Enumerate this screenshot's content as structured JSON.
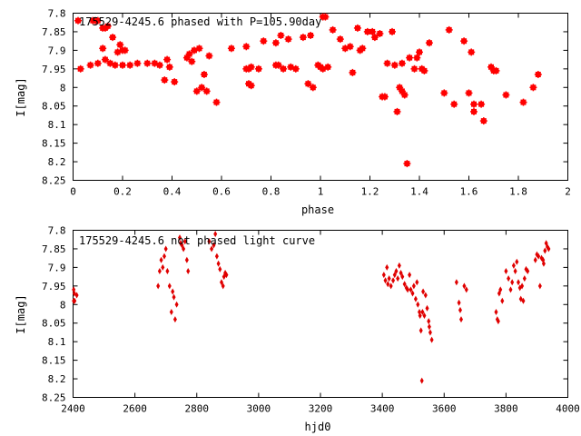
{
  "chart_data": [
    {
      "type": "scatter",
      "title": "175529-4245.6 phased with P=105.90day",
      "xlabel": "phase",
      "ylabel": "I[mag]",
      "xlim": [
        0,
        2
      ],
      "ylim": [
        8.25,
        7.8
      ],
      "y_inverted": true,
      "xticks": [
        "0",
        "0.2",
        "0.4",
        "0.6",
        "0.8",
        "1",
        "1.2",
        "1.4",
        "1.6",
        "1.8",
        "2"
      ],
      "yticks": [
        "7.8",
        "7.85",
        "7.9",
        "7.95",
        "8",
        "8.05",
        "8.1",
        "8.15",
        "8.2",
        "8.25"
      ],
      "marker": "star",
      "color": "#ff0000",
      "points": [
        [
          0.02,
          7.82
        ],
        [
          0.03,
          7.95
        ],
        [
          0.07,
          7.94
        ],
        [
          0.08,
          7.82
        ],
        [
          0.09,
          7.82
        ],
        [
          0.1,
          7.82
        ],
        [
          0.1,
          7.935
        ],
        [
          0.12,
          7.84
        ],
        [
          0.12,
          7.895
        ],
        [
          0.13,
          7.84
        ],
        [
          0.13,
          7.925
        ],
        [
          0.14,
          7.835
        ],
        [
          0.15,
          7.935
        ],
        [
          0.16,
          7.865
        ],
        [
          0.17,
          7.94
        ],
        [
          0.18,
          7.905
        ],
        [
          0.19,
          7.885
        ],
        [
          0.2,
          7.94
        ],
        [
          0.2,
          7.9
        ],
        [
          0.21,
          7.9
        ],
        [
          0.23,
          7.94
        ],
        [
          0.26,
          7.935
        ],
        [
          0.3,
          7.935
        ],
        [
          0.33,
          7.935
        ],
        [
          0.35,
          7.94
        ],
        [
          0.37,
          7.98
        ],
        [
          0.38,
          7.925
        ],
        [
          0.39,
          7.945
        ],
        [
          0.41,
          7.985
        ],
        [
          0.46,
          7.92
        ],
        [
          0.47,
          7.91
        ],
        [
          0.48,
          7.93
        ],
        [
          0.49,
          7.9
        ],
        [
          0.5,
          8.01
        ],
        [
          0.51,
          7.895
        ],
        [
          0.52,
          8.0
        ],
        [
          0.53,
          7.965
        ],
        [
          0.54,
          8.01
        ],
        [
          0.55,
          7.915
        ],
        [
          0.58,
          8.04
        ],
        [
          0.64,
          7.895
        ],
        [
          0.7,
          7.89
        ],
        [
          0.7,
          7.95
        ],
        [
          0.71,
          7.99
        ],
        [
          0.71,
          7.95
        ],
        [
          0.72,
          7.995
        ],
        [
          0.72,
          7.945
        ],
        [
          0.75,
          7.95
        ],
        [
          0.77,
          7.875
        ],
        [
          0.82,
          7.94
        ],
        [
          0.82,
          7.88
        ],
        [
          0.83,
          7.94
        ],
        [
          0.84,
          7.86
        ],
        [
          0.85,
          7.95
        ],
        [
          0.87,
          7.87
        ],
        [
          0.88,
          7.945
        ],
        [
          0.9,
          7.95
        ],
        [
          0.93,
          7.865
        ],
        [
          0.95,
          7.99
        ],
        [
          0.96,
          7.86
        ],
        [
          0.97,
          8.0
        ],
        [
          0.99,
          7.94
        ],
        [
          1.0,
          7.945
        ],
        [
          1.01,
          7.81
        ],
        [
          1.01,
          7.95
        ],
        [
          1.02,
          7.81
        ],
        [
          1.03,
          7.945
        ],
        [
          1.05,
          7.845
        ],
        [
          1.08,
          7.87
        ],
        [
          1.1,
          7.895
        ],
        [
          1.12,
          7.89
        ],
        [
          1.13,
          7.96
        ],
        [
          1.15,
          7.84
        ],
        [
          1.16,
          7.9
        ],
        [
          1.17,
          7.895
        ],
        [
          1.19,
          7.85
        ],
        [
          1.21,
          7.85
        ],
        [
          1.22,
          7.865
        ],
        [
          1.24,
          7.855
        ],
        [
          1.25,
          8.025
        ],
        [
          1.26,
          8.025
        ],
        [
          1.27,
          7.935
        ],
        [
          1.29,
          7.85
        ],
        [
          1.3,
          7.94
        ],
        [
          1.31,
          8.065
        ],
        [
          1.32,
          8.0
        ],
        [
          1.33,
          8.01
        ],
        [
          1.33,
          7.935
        ],
        [
          1.34,
          8.02
        ],
        [
          1.35,
          8.205
        ],
        [
          1.36,
          7.92
        ],
        [
          1.38,
          7.95
        ],
        [
          1.39,
          7.92
        ],
        [
          1.4,
          7.905
        ],
        [
          1.41,
          7.95
        ],
        [
          1.42,
          7.955
        ],
        [
          1.44,
          7.88
        ],
        [
          1.5,
          8.015
        ],
        [
          1.52,
          7.845
        ],
        [
          1.54,
          8.045
        ],
        [
          1.58,
          7.875
        ],
        [
          1.6,
          8.015
        ],
        [
          1.61,
          7.905
        ],
        [
          1.62,
          8.065
        ],
        [
          1.62,
          8.045
        ],
        [
          1.65,
          8.045
        ],
        [
          1.66,
          8.09
        ],
        [
          1.69,
          7.945
        ],
        [
          1.7,
          7.955
        ],
        [
          1.71,
          7.955
        ],
        [
          1.75,
          8.02
        ],
        [
          1.82,
          8.04
        ],
        [
          1.86,
          8.0
        ],
        [
          1.88,
          7.965
        ]
      ]
    },
    {
      "type": "scatter",
      "title": "175529-4245.6 not phased light curve",
      "xlabel": "hjd0",
      "ylabel": "I[mag]",
      "xlim": [
        2400,
        4000
      ],
      "ylim": [
        8.25,
        7.8
      ],
      "y_inverted": true,
      "xticks": [
        "2400",
        "2600",
        "2800",
        "3000",
        "3200",
        "3400",
        "3600",
        "3800",
        "4000"
      ],
      "yticks": [
        "7.8",
        "7.85",
        "7.9",
        "7.95",
        "8",
        "8.05",
        "8.1",
        "8.15",
        "8.2",
        "8.25"
      ],
      "marker": "diamond",
      "color": "#e00000",
      "points": [
        [
          2402,
          7.96
        ],
        [
          2402,
          7.99
        ],
        [
          2404,
          7.97
        ],
        [
          2405,
          7.99
        ],
        [
          2412,
          7.975
        ],
        [
          2675,
          7.95
        ],
        [
          2680,
          7.91
        ],
        [
          2685,
          7.88
        ],
        [
          2690,
          7.9
        ],
        [
          2695,
          7.87
        ],
        [
          2700,
          7.85
        ],
        [
          2705,
          7.91
        ],
        [
          2712,
          7.95
        ],
        [
          2718,
          8.02
        ],
        [
          2722,
          7.965
        ],
        [
          2726,
          7.98
        ],
        [
          2730,
          8.04
        ],
        [
          2735,
          8.0
        ],
        [
          2745,
          7.82
        ],
        [
          2748,
          7.835
        ],
        [
          2752,
          7.84
        ],
        [
          2757,
          7.85
        ],
        [
          2762,
          7.83
        ],
        [
          2768,
          7.88
        ],
        [
          2772,
          7.91
        ],
        [
          2840,
          7.83
        ],
        [
          2848,
          7.85
        ],
        [
          2855,
          7.84
        ],
        [
          2860,
          7.81
        ],
        [
          2865,
          7.87
        ],
        [
          2870,
          7.89
        ],
        [
          2875,
          7.905
        ],
        [
          2880,
          7.94
        ],
        [
          2885,
          7.95
        ],
        [
          2888,
          7.925
        ],
        [
          2892,
          7.915
        ],
        [
          2896,
          7.92
        ],
        [
          3405,
          7.92
        ],
        [
          3410,
          7.935
        ],
        [
          3415,
          7.9
        ],
        [
          3418,
          7.945
        ],
        [
          3422,
          7.93
        ],
        [
          3428,
          7.95
        ],
        [
          3435,
          7.935
        ],
        [
          3440,
          7.92
        ],
        [
          3445,
          7.91
        ],
        [
          3450,
          7.93
        ],
        [
          3455,
          7.895
        ],
        [
          3460,
          7.915
        ],
        [
          3465,
          7.925
        ],
        [
          3472,
          7.945
        ],
        [
          3478,
          7.955
        ],
        [
          3482,
          7.96
        ],
        [
          3488,
          7.92
        ],
        [
          3492,
          7.96
        ],
        [
          3498,
          7.97
        ],
        [
          3502,
          7.95
        ],
        [
          3508,
          7.985
        ],
        [
          3512,
          7.94
        ],
        [
          3515,
          8.0
        ],
        [
          3520,
          8.02
        ],
        [
          3522,
          8.03
        ],
        [
          3525,
          8.07
        ],
        [
          3528,
          8.205
        ],
        [
          3530,
          8.02
        ],
        [
          3532,
          7.965
        ],
        [
          3536,
          8.03
        ],
        [
          3540,
          7.975
        ],
        [
          3545,
          8.01
        ],
        [
          3550,
          8.045
        ],
        [
          3552,
          8.06
        ],
        [
          3555,
          8.075
        ],
        [
          3560,
          8.095
        ],
        [
          3640,
          7.94
        ],
        [
          3648,
          7.995
        ],
        [
          3652,
          8.015
        ],
        [
          3655,
          8.04
        ],
        [
          3665,
          7.95
        ],
        [
          3672,
          7.96
        ],
        [
          3768,
          8.02
        ],
        [
          3772,
          8.04
        ],
        [
          3775,
          8.045
        ],
        [
          3778,
          7.97
        ],
        [
          3782,
          7.96
        ],
        [
          3788,
          7.99
        ],
        [
          3800,
          7.91
        ],
        [
          3808,
          7.93
        ],
        [
          3815,
          7.96
        ],
        [
          3820,
          7.94
        ],
        [
          3825,
          7.895
        ],
        [
          3830,
          7.91
        ],
        [
          3835,
          7.885
        ],
        [
          3840,
          7.94
        ],
        [
          3845,
          7.955
        ],
        [
          3848,
          7.985
        ],
        [
          3852,
          7.95
        ],
        [
          3856,
          7.99
        ],
        [
          3860,
          7.93
        ],
        [
          3865,
          7.905
        ],
        [
          3870,
          7.91
        ],
        [
          3895,
          7.88
        ],
        [
          3900,
          7.865
        ],
        [
          3905,
          7.87
        ],
        [
          3910,
          7.95
        ],
        [
          3915,
          7.875
        ],
        [
          3920,
          7.88
        ],
        [
          3922,
          7.89
        ],
        [
          3926,
          7.855
        ],
        [
          3930,
          7.835
        ],
        [
          3934,
          7.845
        ],
        [
          3938,
          7.85
        ]
      ]
    }
  ]
}
